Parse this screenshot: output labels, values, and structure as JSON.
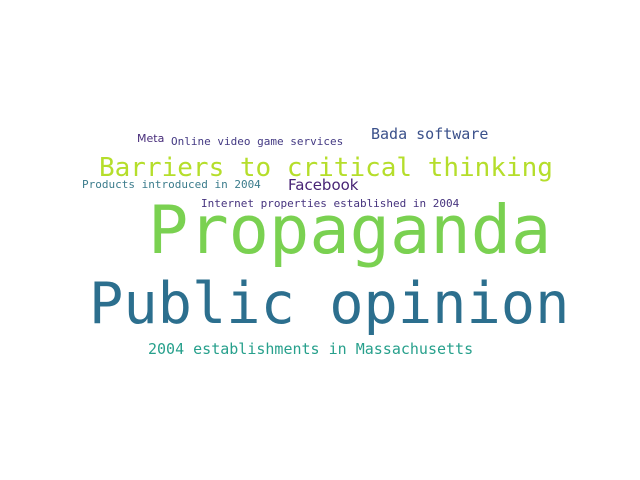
{
  "words": {
    "meta": {
      "text": "Meta",
      "color": "#472c7a"
    },
    "online_video_game_services": {
      "text": "Online video game services",
      "color": "#443a83"
    },
    "bada_software": {
      "text": "Bada software",
      "color": "#3b518b"
    },
    "barriers": {
      "text": "Barriers to critical thinking",
      "color": "#b5de2b"
    },
    "products_introduced": {
      "text": "Products introduced in 2004",
      "color": "#3b7c8c"
    },
    "facebook": {
      "text": "Facebook",
      "color": "#482475"
    },
    "internet_properties": {
      "text": "Internet properties established in 2004",
      "color": "#46337e"
    },
    "propaganda": {
      "text": "Propaganda",
      "color": "#7ad151"
    },
    "public_opinion": {
      "text": "Public opinion",
      "color": "#2c6f8e"
    },
    "establishments_ma": {
      "text": "2004 establishments in Massachusetts",
      "color": "#27a08c"
    }
  }
}
